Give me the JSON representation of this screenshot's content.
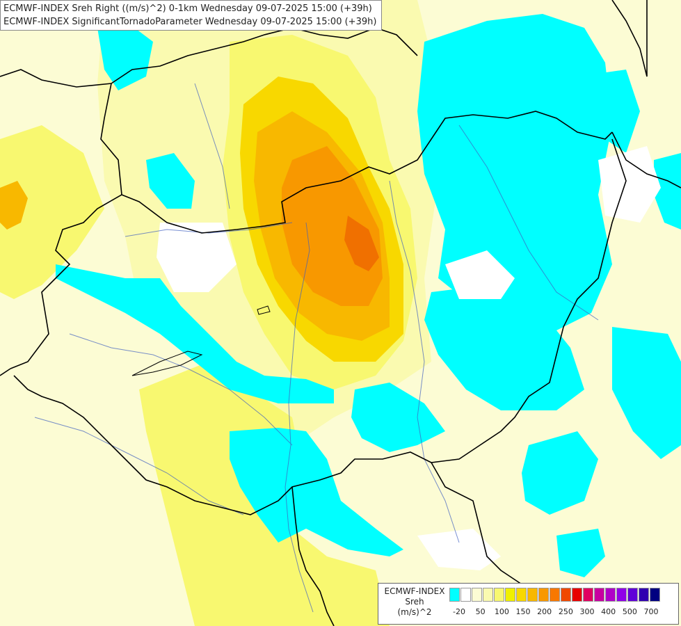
{
  "header": {
    "line1": "ECMWF-INDEX Sreh Right ((m/s)^2) 0-1km Wednesday 09-07-2025 15:00 (+39h)",
    "line2": "ECMWF-INDEX SignificantTornadoParameter Wednesday 09-07-2025 15:00 (+39h)"
  },
  "legend": {
    "title": [
      "ECMWF-INDEX",
      "Sreh",
      "(m/s)^2"
    ],
    "colors": [
      "#00ffff",
      "#ffffff",
      "#fcfcd4",
      "#fafab0",
      "#f8f870",
      "#f0f000",
      "#f8d800",
      "#f8b800",
      "#f89800",
      "#f87800",
      "#f04800",
      "#e80000",
      "#e00060",
      "#c800a0",
      "#b000c8",
      "#9000e8",
      "#6000d8",
      "#3000b0",
      "#000080"
    ],
    "ticks": [
      "-20",
      "50",
      "100",
      "150",
      "200",
      "250",
      "300",
      "400",
      "500",
      "700"
    ]
  },
  "colors": {
    "negative": "#00ffff",
    "low": "#fcfcd4",
    "mid": "#f8f870",
    "high": "#f8b800",
    "peak": "#f04800",
    "border": "#000000",
    "river": "#4060c0"
  }
}
